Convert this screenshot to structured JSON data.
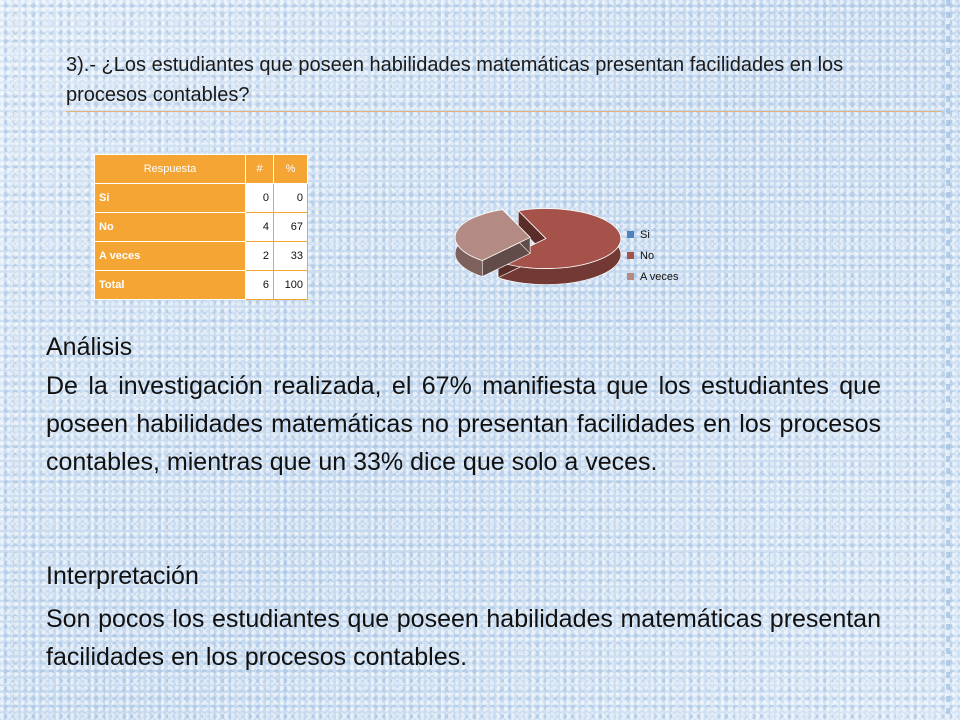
{
  "title": "3).- ¿Los estudiantes que poseen habilidades matemáticas presentan facilidades en los procesos contables?",
  "table": {
    "headers": [
      "Respuesta",
      "#",
      "%"
    ],
    "rows": [
      {
        "label": "Si",
        "count": "0",
        "pct": "0"
      },
      {
        "label": "No",
        "count": "4",
        "pct": "67"
      },
      {
        "label": "A veces",
        "count": "2",
        "pct": "33"
      },
      {
        "label": "Total",
        "count": "6",
        "pct": "100"
      }
    ]
  },
  "chart_data": {
    "type": "pie",
    "style": "3d-exploded",
    "categories": [
      "Si",
      "No",
      "A veces"
    ],
    "values": [
      0,
      67,
      33
    ],
    "colors": [
      "#4f81bd",
      "#a5524a",
      "#b38a84"
    ],
    "legend_position": "right",
    "title": ""
  },
  "analysis": {
    "heading": "Análisis",
    "text": "De la investigación realizada, el 67% manifiesta que los estudiantes que poseen habilidades matemáticas no presentan facilidades en los procesos contables, mientras que un 33% dice que solo a veces."
  },
  "interpretation": {
    "heading": "Interpretación",
    "text": "Son pocos los estudiantes que poseen habilidades matemáticas presentan facilidades en los procesos contables."
  }
}
